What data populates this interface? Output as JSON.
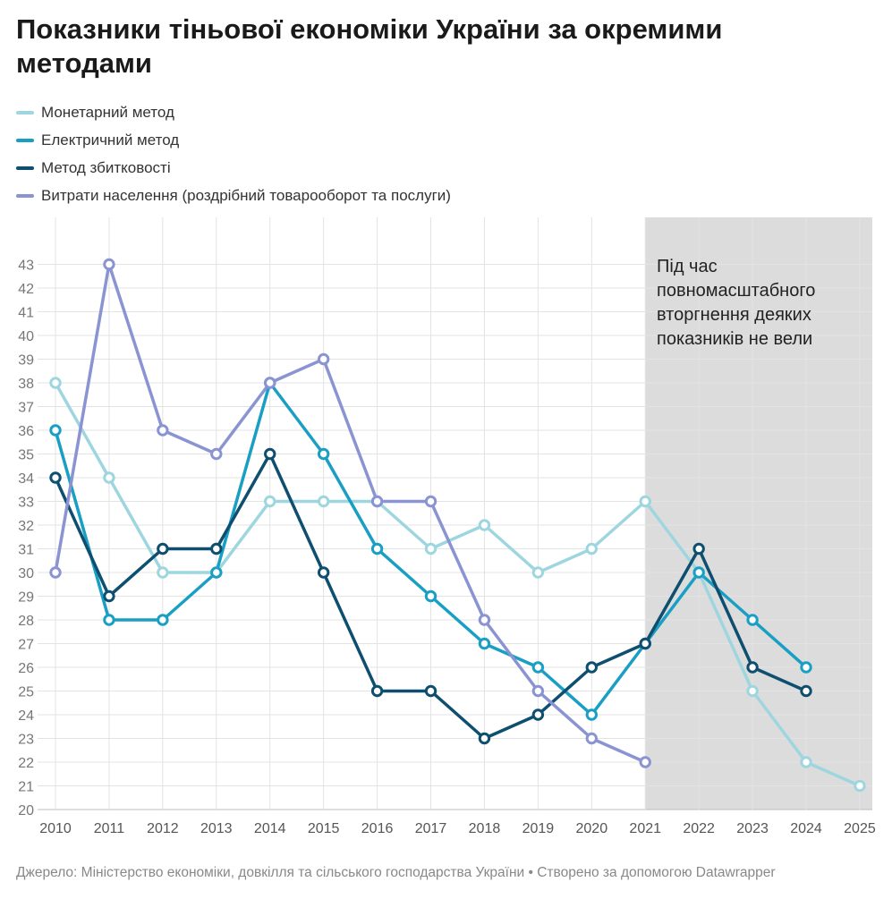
{
  "title": "Показники тіньової економіки України за окремими методами",
  "footer": "Джерело: Міністерство економіки, довкілля та сільського господарства України • Створено за допомогою Datawrapper",
  "chart_data": {
    "type": "line",
    "title": "Показники тіньової економіки України за окремими методами",
    "x": [
      2010,
      2011,
      2012,
      2013,
      2014,
      2015,
      2016,
      2017,
      2018,
      2019,
      2020,
      2021,
      2022,
      2023,
      2024,
      2025
    ],
    "xlabel": "",
    "ylabel": "",
    "ylim": [
      20,
      43
    ],
    "grid": true,
    "legend_position": "top-left",
    "series": [
      {
        "name": "Монетарний метод",
        "color": "#9ed6e0",
        "values": [
          38,
          34,
          30,
          30,
          33,
          33,
          33,
          31,
          32,
          30,
          31,
          33,
          30,
          25,
          22,
          21
        ]
      },
      {
        "name": "Електричний метод",
        "color": "#1a9fc4",
        "values": [
          36,
          28,
          28,
          30,
          38,
          35,
          31,
          29,
          27,
          26,
          24,
          27,
          30,
          28,
          26,
          null
        ]
      },
      {
        "name": "Метод збитковості",
        "color": "#0e4f70",
        "values": [
          34,
          29,
          31,
          31,
          35,
          30,
          25,
          25,
          23,
          24,
          26,
          27,
          31,
          26,
          25,
          null
        ]
      },
      {
        "name": "Витрати населення (роздрібний товарооборот та послуги)",
        "color": "#8a94d2",
        "values": [
          30,
          43,
          36,
          35,
          38,
          39,
          33,
          33,
          28,
          25,
          23,
          22,
          null,
          null,
          null,
          null
        ]
      }
    ],
    "shaded_range": {
      "from": 2021,
      "to": 2025,
      "color": "#dcdcdc",
      "annotation": "Під час повномасштабного вторгнення деяких показників не вели"
    }
  }
}
